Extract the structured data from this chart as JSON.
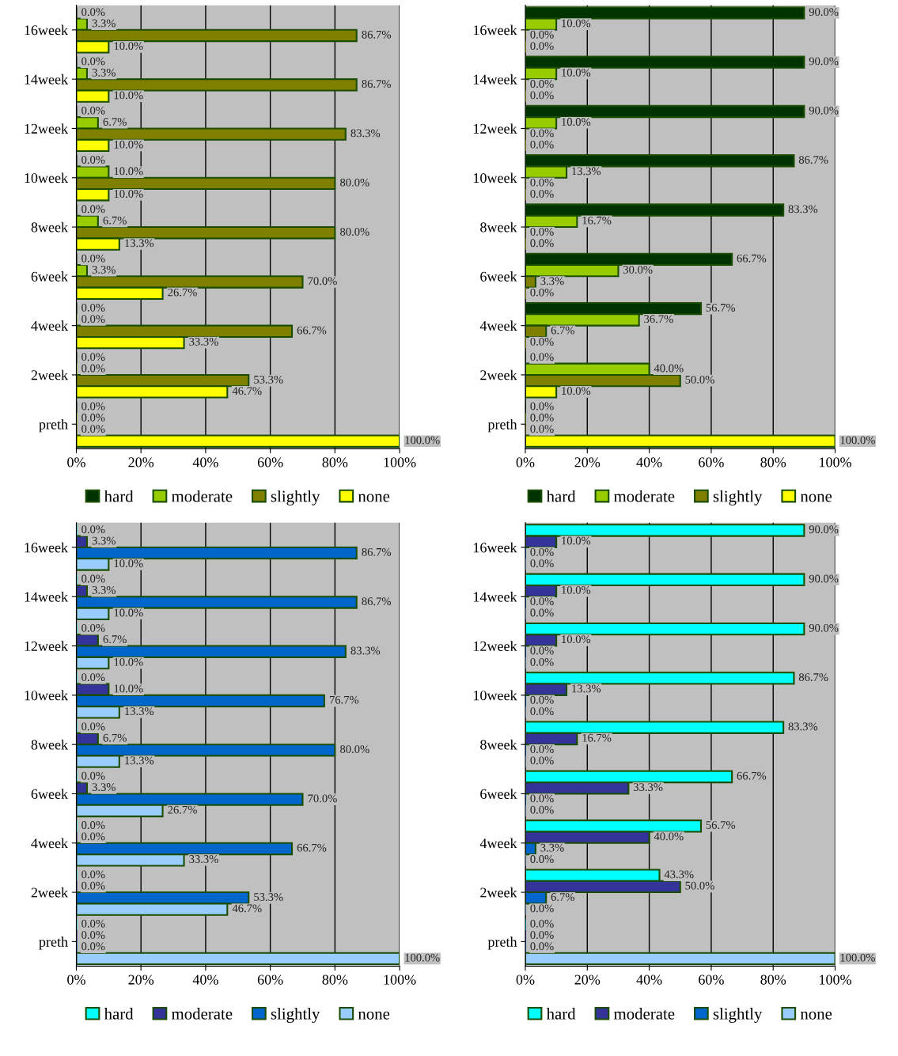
{
  "chart_data": [
    {
      "type": "bar",
      "orientation": "horizontal",
      "categories": [
        "16week",
        "14week",
        "12week",
        "10week",
        "8week",
        "6week",
        "4week",
        "2week",
        "preth"
      ],
      "xlim": [
        0,
        100
      ],
      "xticks": [
        {
          "value": 0,
          "label": "0%"
        },
        {
          "value": 20,
          "label": "20%"
        },
        {
          "value": 40,
          "label": "40%"
        },
        {
          "value": 60,
          "label": "60%"
        },
        {
          "value": 80,
          "label": "80%"
        },
        {
          "value": 100,
          "label": "100%"
        }
      ],
      "grid": "x",
      "legend": "bottom",
      "series": [
        {
          "name": "hard",
          "color": "#003300",
          "values": [
            0.0,
            0.0,
            0.0,
            0.0,
            0.0,
            0.0,
            0.0,
            0.0,
            0.0
          ],
          "value_labels": [
            "0.0%",
            "0.0%",
            "0.0%",
            "0.0%",
            "0.0%",
            "0.0%",
            "0.0%",
            "0.0%",
            "0.0%"
          ]
        },
        {
          "name": "moderate",
          "color": "#99cc00",
          "values": [
            3.3,
            3.3,
            6.7,
            10.0,
            6.7,
            3.3,
            0.0,
            0.0,
            0.0
          ],
          "value_labels": [
            "3.3%",
            "3.3%",
            "6.7%",
            "10.0%",
            "6.7%",
            "3.3%",
            "0.0%",
            "0.0%",
            "0.0%"
          ]
        },
        {
          "name": "slightly",
          "color": "#808000",
          "values": [
            86.7,
            86.7,
            83.3,
            80.0,
            80.0,
            70.0,
            66.7,
            53.3,
            0.0
          ],
          "value_labels": [
            "86.7%",
            "86.7%",
            "83.3%",
            "80.0%",
            "80.0%",
            "70.0%",
            "66.7%",
            "53.3%",
            "0.0%"
          ]
        },
        {
          "name": "none",
          "color": "#ffff00",
          "values": [
            10.0,
            10.0,
            10.0,
            10.0,
            13.3,
            26.7,
            33.3,
            46.7,
            100.0
          ],
          "value_labels": [
            "10.0%",
            "10.0%",
            "10.0%",
            "10.0%",
            "13.3%",
            "26.7%",
            "33.3%",
            "46.7%",
            "100.0%"
          ]
        }
      ]
    },
    {
      "type": "bar",
      "orientation": "horizontal",
      "categories": [
        "16week",
        "14week",
        "12week",
        "10week",
        "8week",
        "6week",
        "4week",
        "2week",
        "preth"
      ],
      "xlim": [
        0,
        100
      ],
      "xticks": [
        {
          "value": 0,
          "label": "0%"
        },
        {
          "value": 20,
          "label": "20%"
        },
        {
          "value": 40,
          "label": "40%"
        },
        {
          "value": 60,
          "label": "60%"
        },
        {
          "value": 80,
          "label": "80%"
        },
        {
          "value": 100,
          "label": "100%"
        }
      ],
      "grid": "x",
      "legend": "bottom",
      "series": [
        {
          "name": "hard",
          "color": "#003300",
          "values": [
            90.0,
            90.0,
            90.0,
            86.7,
            83.3,
            66.7,
            56.7,
            0.0,
            0.0
          ],
          "value_labels": [
            "90.0%",
            "90.0%",
            "90.0%",
            "86.7%",
            "83.3%",
            "66.7%",
            "56.7%",
            "0.0%",
            "0.0%"
          ]
        },
        {
          "name": "moderate",
          "color": "#99cc00",
          "values": [
            10.0,
            10.0,
            10.0,
            13.3,
            16.7,
            30.0,
            36.7,
            40.0,
            0.0
          ],
          "value_labels": [
            "10.0%",
            "10.0%",
            "10.0%",
            "13.3%",
            "16.7%",
            "30.0%",
            "36.7%",
            "40.0%",
            "0.0%"
          ]
        },
        {
          "name": "slightly",
          "color": "#808000",
          "values": [
            0.0,
            0.0,
            0.0,
            0.0,
            0.0,
            3.3,
            6.7,
            50.0,
            0.0
          ],
          "value_labels": [
            "0.0%",
            "0.0%",
            "0.0%",
            "0.0%",
            "0.0%",
            "3.3%",
            "6.7%",
            "50.0%",
            "0.0%"
          ]
        },
        {
          "name": "none",
          "color": "#ffff00",
          "values": [
            0.0,
            0.0,
            0.0,
            0.0,
            0.0,
            0.0,
            0.0,
            10.0,
            100.0
          ],
          "value_labels": [
            "0.0%",
            "0.0%",
            "0.0%",
            "0.0%",
            "0.0%",
            "0.0%",
            "0.0%",
            "10.0%",
            "100.0%"
          ]
        }
      ]
    },
    {
      "type": "bar",
      "orientation": "horizontal",
      "categories": [
        "16week",
        "14week",
        "12week",
        "10week",
        "8week",
        "6week",
        "4week",
        "2week",
        "preth"
      ],
      "xlim": [
        0,
        100
      ],
      "xticks": [
        {
          "value": 0,
          "label": "0%"
        },
        {
          "value": 20,
          "label": "20%"
        },
        {
          "value": 40,
          "label": "40%"
        },
        {
          "value": 60,
          "label": "60%"
        },
        {
          "value": 80,
          "label": "80%"
        },
        {
          "value": 100,
          "label": "100%"
        }
      ],
      "grid": "x",
      "legend": "bottom",
      "series": [
        {
          "name": "hard",
          "color": "#00ffff",
          "values": [
            0.0,
            0.0,
            0.0,
            0.0,
            0.0,
            0.0,
            0.0,
            0.0,
            0.0
          ],
          "value_labels": [
            "0.0%",
            "0.0%",
            "0.0%",
            "0.0%",
            "0.0%",
            "0.0%",
            "0.0%",
            "0.0%",
            "0.0%"
          ]
        },
        {
          "name": "moderate",
          "color": "#333399",
          "values": [
            3.3,
            3.3,
            6.7,
            10.0,
            6.7,
            3.3,
            0.0,
            0.0,
            0.0
          ],
          "value_labels": [
            "3.3%",
            "3.3%",
            "6.7%",
            "10.0%",
            "6.7%",
            "3.3%",
            "0.0%",
            "0.0%",
            "0.0%"
          ]
        },
        {
          "name": "slightly",
          "color": "#0066cc",
          "values": [
            86.7,
            86.7,
            83.3,
            76.7,
            80.0,
            70.0,
            66.7,
            53.3,
            0.0
          ],
          "value_labels": [
            "86.7%",
            "86.7%",
            "83.3%",
            "76.7%",
            "80.0%",
            "70.0%",
            "66.7%",
            "53.3%",
            "0.0%"
          ]
        },
        {
          "name": "none",
          "color": "#99ccff",
          "values": [
            10.0,
            10.0,
            10.0,
            13.3,
            13.3,
            26.7,
            33.3,
            46.7,
            100.0
          ],
          "value_labels": [
            "10.0%",
            "10.0%",
            "10.0%",
            "13.3%",
            "13.3%",
            "26.7%",
            "33.3%",
            "46.7%",
            "100.0%"
          ]
        }
      ]
    },
    {
      "type": "bar",
      "orientation": "horizontal",
      "categories": [
        "16week",
        "14week",
        "12week",
        "10week",
        "8week",
        "6week",
        "4week",
        "2week",
        "preth"
      ],
      "xlim": [
        0,
        100
      ],
      "xticks": [
        {
          "value": 0,
          "label": "0%"
        },
        {
          "value": 20,
          "label": "20%"
        },
        {
          "value": 40,
          "label": "40%"
        },
        {
          "value": 60,
          "label": "60%"
        },
        {
          "value": 80,
          "label": "80%"
        },
        {
          "value": 100,
          "label": "100%"
        }
      ],
      "grid": "x",
      "legend": "bottom",
      "series": [
        {
          "name": "hard",
          "color": "#00ffff",
          "values": [
            90.0,
            90.0,
            90.0,
            86.7,
            83.3,
            66.7,
            56.7,
            43.3,
            0.0
          ],
          "value_labels": [
            "90.0%",
            "90.0%",
            "90.0%",
            "86.7%",
            "83.3%",
            "66.7%",
            "56.7%",
            "43.3%",
            "0.0%"
          ]
        },
        {
          "name": "moderate",
          "color": "#333399",
          "values": [
            10.0,
            10.0,
            10.0,
            13.3,
            16.7,
            33.3,
            40.0,
            50.0,
            0.0
          ],
          "value_labels": [
            "10.0%",
            "10.0%",
            "10.0%",
            "13.3%",
            "16.7%",
            "33.3%",
            "40.0%",
            "50.0%",
            "0.0%"
          ]
        },
        {
          "name": "slightly",
          "color": "#0066cc",
          "values": [
            0.0,
            0.0,
            0.0,
            0.0,
            0.0,
            0.0,
            3.3,
            6.7,
            0.0
          ],
          "value_labels": [
            "0.0%",
            "0.0%",
            "0.0%",
            "0.0%",
            "0.0%",
            "0.0%",
            "3.3%",
            "6.7%",
            "0.0%"
          ]
        },
        {
          "name": "none",
          "color": "#99ccff",
          "values": [
            0.0,
            0.0,
            0.0,
            0.0,
            0.0,
            0.0,
            0.0,
            0.0,
            100.0
          ],
          "value_labels": [
            "0.0%",
            "0.0%",
            "0.0%",
            "0.0%",
            "0.0%",
            "0.0%",
            "0.0%",
            "0.0%",
            "100.0%"
          ]
        }
      ]
    }
  ]
}
